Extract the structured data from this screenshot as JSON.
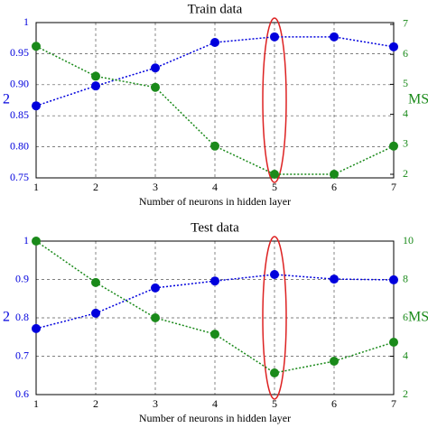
{
  "chart_data": [
    {
      "type": "line",
      "title": "Train data",
      "xlabel": "Number of neurons in hidden layer",
      "ylabel": "2",
      "y2label": "MS",
      "x": [
        1,
        2,
        3,
        4,
        5,
        6,
        7
      ],
      "xlim": [
        1,
        7
      ],
      "xticks": [
        1,
        2,
        3,
        4,
        5,
        6,
        7
      ],
      "ylim": [
        0.75,
        1
      ],
      "yticks": [
        0.75,
        {
          "value": 0.8,
          "label": "0.80"
        },
        0.85,
        {
          "value": 0.9,
          "label": "0.90"
        },
        0.95,
        1
      ],
      "y2lim": [
        1.88,
        7.06
      ],
      "y2ticks": [
        2,
        3,
        4,
        5,
        6,
        7
      ],
      "grid": true,
      "series": [
        {
          "color": "#0000dd",
          "values": [
            0.866,
            0.898,
            0.927,
            0.968,
            0.977,
            0.977,
            0.961
          ]
        },
        {
          "color": "#1a8a1a",
          "axis": "y2",
          "values": [
            6.27,
            5.27,
            4.9,
            2.94,
            2.0,
            2.0,
            2.94
          ]
        }
      ]
    },
    {
      "type": "line",
      "title": "Test data",
      "xlabel": "Number of neurons in hidden layer",
      "ylabel": "2",
      "y2label": "MS",
      "x": [
        1,
        2,
        3,
        4,
        5,
        6,
        7
      ],
      "xlim": [
        1,
        7
      ],
      "xticks": [
        1,
        2,
        3,
        4,
        5,
        6,
        7
      ],
      "ylim": [
        0.6,
        1
      ],
      "yticks": [
        0.6,
        0.7,
        0.8,
        0.9,
        1
      ],
      "y2lim": [
        2,
        10
      ],
      "y2ticks": [
        2,
        4,
        6,
        8,
        10
      ],
      "grid": true,
      "series": [
        {
          "color": "#0000dd",
          "values": [
            0.772,
            0.812,
            0.878,
            0.896,
            0.913,
            0.901,
            0.899
          ]
        },
        {
          "color": "#1a8a1a",
          "axis": "y2",
          "values": [
            10,
            7.84,
            6.0,
            5.15,
            3.13,
            3.74,
            4.73
          ]
        }
      ]
    }
  ]
}
